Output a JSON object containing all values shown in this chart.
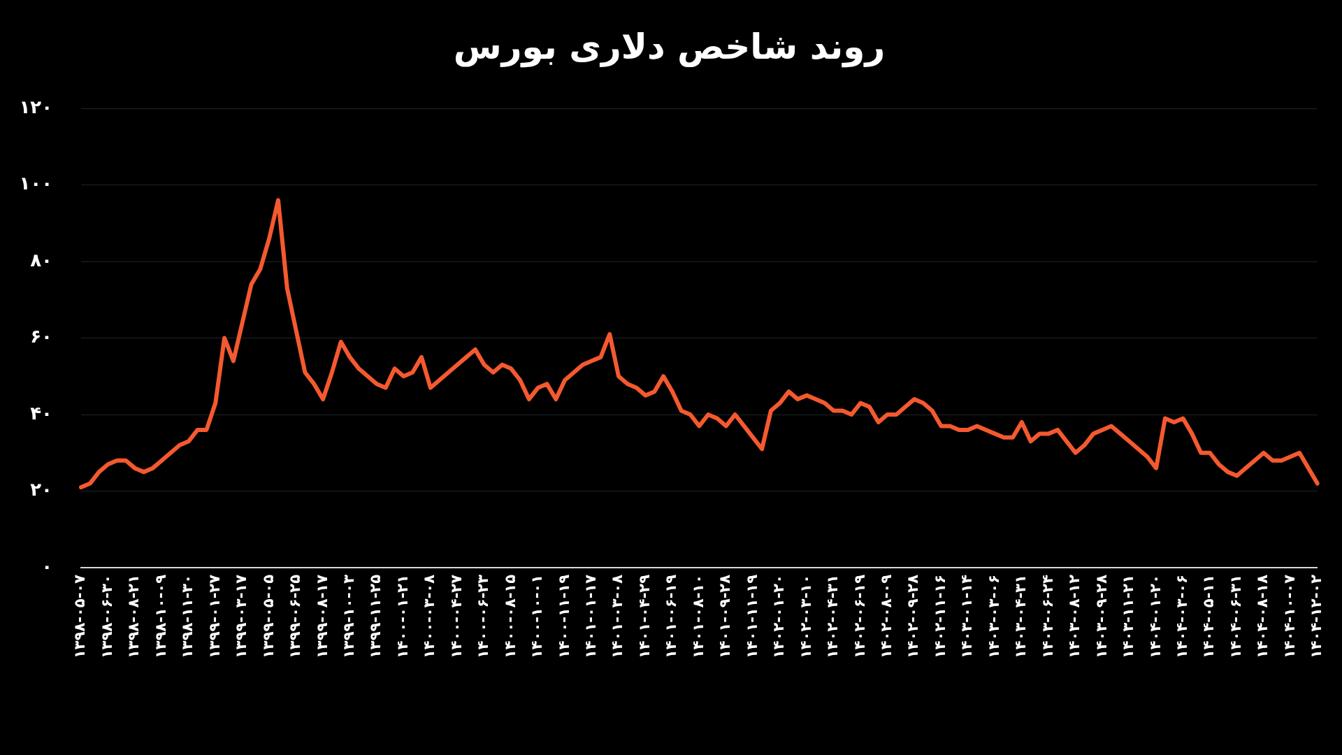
{
  "chart_data": {
    "type": "line",
    "title": "روند شاخص دلاری بورس",
    "categories": [
      "۱۳۹۸-۰۵-۰۷",
      null,
      null,
      "۱۳۹۸-۰۶-۳۰",
      null,
      null,
      "۱۳۹۸-۰۸-۲۱",
      null,
      null,
      "۱۳۹۸-۱۰-۰۹",
      null,
      null,
      "۱۳۹۸-۱۱-۳۰",
      null,
      null,
      "۱۳۹۹-۰۱-۲۷",
      null,
      null,
      "۱۳۹۹-۰۳-۱۷",
      null,
      null,
      "۱۳۹۹-۰۵-۰۵",
      null,
      null,
      "۱۳۹۹-۰۶-۲۵",
      null,
      null,
      "۱۳۹۹-۰۸-۱۷",
      null,
      null,
      "۱۳۹۹-۱۰-۰۳",
      null,
      null,
      "۱۳۹۹-۱۱-۲۵",
      null,
      null,
      "۱۴۰۰-۰۱-۲۱",
      null,
      null,
      "۱۴۰۰-۰۳-۰۸",
      null,
      null,
      "۱۴۰۰-۰۴-۲۷",
      null,
      null,
      "۱۴۰۰-۰۶-۲۳",
      null,
      null,
      "۱۴۰۰-۰۸-۱۵",
      null,
      null,
      "۱۴۰۰-۱۰-۰۱",
      null,
      null,
      "۱۴۰۰-۱۱-۱۹",
      null,
      null,
      "۱۴۰۱-۰۱-۱۷",
      null,
      null,
      "۱۴۰۱-۰۳-۰۸",
      null,
      null,
      "۱۴۰۱-۰۴-۲۹",
      null,
      null,
      "۱۴۰۱-۰۶-۱۹",
      null,
      null,
      "۱۴۰۱-۰۸-۱۰",
      null,
      null,
      "۱۴۰۱-۰۹-۲۸",
      null,
      null,
      "۱۴۰۱-۱۱-۱۹",
      null,
      null,
      "۱۴۰۲-۰۱-۲۰",
      null,
      null,
      "۱۴۰۲-۰۳-۱۰",
      null,
      null,
      "۱۴۰۲-۰۴-۳۱",
      null,
      null,
      "۱۴۰۲-۰۶-۱۹",
      null,
      null,
      "۱۴۰۲-۰۸-۰۹",
      null,
      null,
      "۱۴۰۲-۰۹-۲۸",
      null,
      null,
      "۱۴۰۲-۱۱-۱۶",
      null,
      null,
      "۱۴۰۳-۰۱-۱۴",
      null,
      null,
      "۱۴۰۳-۰۳-۰۶",
      null,
      null,
      "۱۴۰۳-۰۴-۳۱",
      null,
      null,
      "۱۴۰۳-۰۶-۲۴",
      null,
      null,
      "۱۴۰۳-۰۸-۱۲",
      null,
      null,
      "۱۴۰۳-۰۹-۲۸",
      null,
      null,
      "۱۴۰۳-۱۱-۲۱",
      null,
      null,
      "۱۴۰۴-۰۱-۲۰",
      null,
      null,
      "۱۴۰۴-۰۳-۰۶",
      null,
      null,
      "۱۴۰۴-۰۵-۱۱",
      null,
      null,
      "۱۴۰۴-۰۶-۳۱",
      null,
      null,
      "۱۴۰۴-۰۸-۱۸",
      null,
      null,
      "۱۴۰۴-۱۰-۰۷",
      null,
      null,
      "۱۴۰۴-۱۲-۰۲"
    ],
    "values": [
      21,
      22,
      25,
      27,
      28,
      28,
      26,
      25,
      26,
      28,
      30,
      32,
      33,
      36,
      36,
      43,
      60,
      54,
      64,
      74,
      78,
      86,
      96,
      73,
      62,
      51,
      48,
      44,
      51,
      59,
      55,
      52,
      50,
      48,
      47,
      52,
      50,
      51,
      55,
      47,
      49,
      51,
      53,
      55,
      57,
      53,
      51,
      53,
      52,
      49,
      44,
      47,
      48,
      44,
      49,
      51,
      53,
      54,
      55,
      61,
      50,
      48,
      47,
      45,
      46,
      50,
      46,
      41,
      40,
      37,
      40,
      39,
      37,
      40,
      37,
      34,
      31,
      41,
      43,
      46,
      44,
      45,
      44,
      43,
      41,
      41,
      40,
      43,
      42,
      38,
      40,
      40,
      42,
      44,
      43,
      41,
      37,
      37,
      36,
      36,
      37,
      36,
      35,
      34,
      34,
      38,
      33,
      35,
      35,
      36,
      33,
      30,
      32,
      35,
      36,
      37,
      35,
      33,
      31,
      29,
      26,
      39,
      38,
      39,
      35,
      30,
      30,
      27,
      25,
      24,
      26,
      28,
      30,
      28,
      28,
      29,
      30,
      26,
      22
    ],
    "color": "#f4592f",
    "ylim": [
      0,
      120
    ],
    "yticks": [
      {
        "value": 0,
        "label": "۰"
      },
      {
        "value": 20,
        "label": "۲۰"
      },
      {
        "value": 40,
        "label": "۴۰"
      },
      {
        "value": 60,
        "label": "۶۰"
      },
      {
        "value": 80,
        "label": "۸۰"
      },
      {
        "value": 100,
        "label": "۱۰۰"
      },
      {
        "value": 120,
        "label": "۱۲۰"
      }
    ],
    "grid": "y",
    "marker": "none"
  }
}
